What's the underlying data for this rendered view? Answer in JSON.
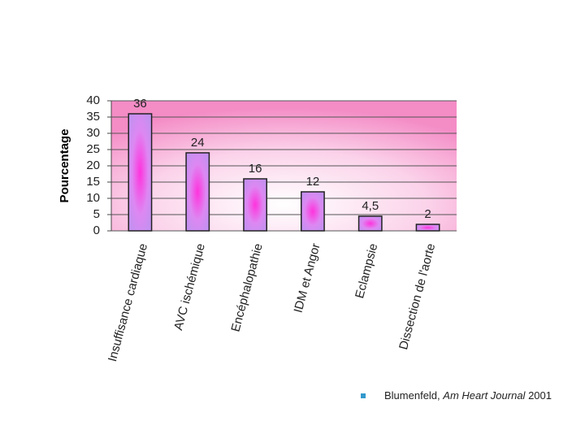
{
  "chart_data": {
    "type": "bar",
    "y_label": "Pourcentage",
    "categories": [
      "Insuffisance cardiaque",
      "AVC ischémique",
      "Encéphalopathie",
      "IDM et Angor",
      "Eclampsie",
      "Dissection de l'aorte"
    ],
    "values": [
      36,
      24,
      16,
      12,
      4.5,
      2
    ],
    "value_labels": [
      "36",
      "24",
      "16",
      "12",
      "4,5",
      "2"
    ],
    "color": "#cc88ee",
    "ylim": [
      0,
      40
    ],
    "yticks": [
      0,
      5,
      10,
      15,
      20,
      25,
      30,
      35,
      40
    ],
    "grid": true,
    "footnote": {
      "author": "Blumenfeld,",
      "journal": "Am Heart Journal",
      "year": "2001"
    }
  }
}
